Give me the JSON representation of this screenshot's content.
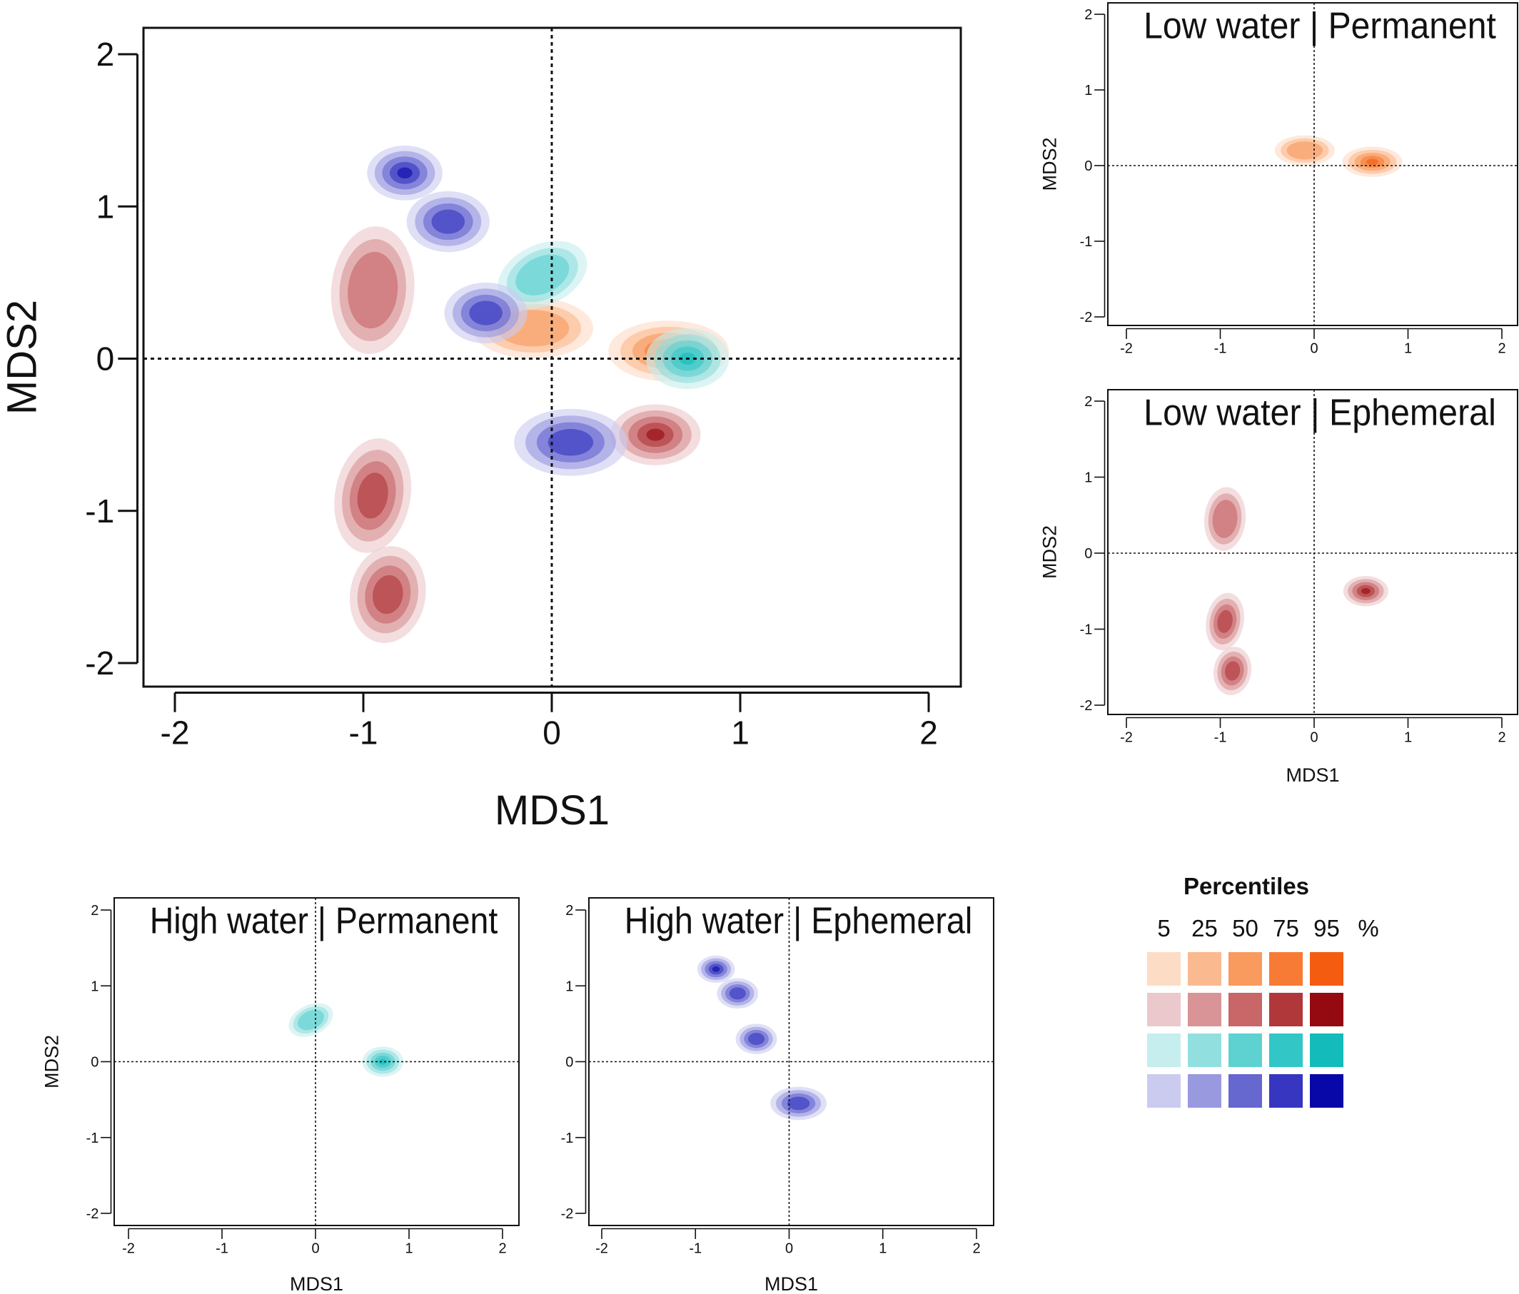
{
  "contour_levels": [
    5,
    25,
    50,
    75,
    95
  ],
  "legend": {
    "title": "Percentiles",
    "headers": [
      "5",
      "25",
      "50",
      "75",
      "95"
    ],
    "unit": "%",
    "rows": [
      [
        "#fddcc6",
        "#fbb990",
        "#f99a5e",
        "#f77a35",
        "#f45c10"
      ],
      [
        "#ebc8cb",
        "#d89496",
        "#c86668",
        "#b0383b",
        "#950910"
      ],
      [
        "#c6eeee",
        "#92dfdf",
        "#5ed1d1",
        "#33c6c6",
        "#13bbbb"
      ],
      [
        "#cbcbf0",
        "#9999e0",
        "#6767d0",
        "#3636c0",
        "#0808a8"
      ]
    ]
  },
  "chart_data": [
    {
      "type": "contour",
      "title": "",
      "xlabel": "MDS1",
      "ylabel": "MDS2",
      "xlim": [
        -2,
        2
      ],
      "ylim": [
        -2,
        2
      ],
      "xticks": [
        "-2",
        "-1",
        "0",
        "1",
        "2"
      ],
      "yticks": [
        "-2",
        "-1",
        "0",
        "1",
        "2"
      ],
      "reference_lines": {
        "x": 0,
        "y": 0
      },
      "series": [
        {
          "palette": "orange",
          "blobs": [
            {
              "x": -0.1,
              "y": 0.2,
              "sx": 0.32,
              "sy": 0.2,
              "rot": 0,
              "peak": 0.55
            },
            {
              "x": 0.62,
              "y": 0.05,
              "sx": 0.32,
              "sy": 0.2,
              "rot": 0,
              "peak": 1
            }
          ]
        },
        {
          "palette": "red",
          "blobs": [
            {
              "x": -0.95,
              "y": 0.45,
              "sx": 0.22,
              "sy": 0.42,
              "rot": 5,
              "peak": 0.6
            },
            {
              "x": -0.95,
              "y": -0.9,
              "sx": 0.2,
              "sy": 0.38,
              "rot": 10,
              "peak": 0.8
            },
            {
              "x": -0.87,
              "y": -1.55,
              "sx": 0.2,
              "sy": 0.32,
              "rot": 10,
              "peak": 0.8
            },
            {
              "x": 0.55,
              "y": -0.5,
              "sx": 0.24,
              "sy": 0.2,
              "rot": 0,
              "peak": 1
            }
          ]
        },
        {
          "palette": "teal",
          "blobs": [
            {
              "x": -0.05,
              "y": 0.55,
              "sx": 0.25,
              "sy": 0.2,
              "rot": -25,
              "peak": 0.6
            },
            {
              "x": 0.72,
              "y": 0.0,
              "sx": 0.22,
              "sy": 0.2,
              "rot": 0,
              "peak": 1
            }
          ]
        },
        {
          "palette": "blue",
          "blobs": [
            {
              "x": -0.78,
              "y": 1.22,
              "sx": 0.2,
              "sy": 0.18,
              "rot": 0,
              "peak": 1
            },
            {
              "x": -0.55,
              "y": 0.9,
              "sx": 0.22,
              "sy": 0.2,
              "rot": 0,
              "peak": 0.75
            },
            {
              "x": -0.35,
              "y": 0.3,
              "sx": 0.22,
              "sy": 0.2,
              "rot": 0,
              "peak": 0.8
            },
            {
              "x": 0.1,
              "y": -0.55,
              "sx": 0.3,
              "sy": 0.22,
              "rot": 0,
              "peak": 0.85
            }
          ]
        }
      ]
    },
    {
      "type": "contour",
      "title": "Low water | Permanent",
      "xlabel": "",
      "ylabel": "MDS2",
      "xlim": [
        -2,
        2
      ],
      "ylim": [
        -2,
        2
      ],
      "xticks": [
        "-2",
        "-1",
        "0",
        "1",
        "2"
      ],
      "yticks": [
        "-2",
        "-1",
        "0",
        "1",
        "2"
      ],
      "reference_lines": {
        "x": 0,
        "y": 0
      },
      "series": [
        {
          "palette": "orange",
          "blobs": [
            {
              "x": -0.1,
              "y": 0.2,
              "sx": 0.32,
              "sy": 0.2,
              "rot": 0,
              "peak": 0.55
            },
            {
              "x": 0.62,
              "y": 0.05,
              "sx": 0.32,
              "sy": 0.2,
              "rot": 0,
              "peak": 1
            }
          ]
        }
      ]
    },
    {
      "type": "contour",
      "title": "Low water | Ephemeral",
      "xlabel": "MDS1",
      "ylabel": "MDS2",
      "xlim": [
        -2,
        2
      ],
      "ylim": [
        -2,
        2
      ],
      "xticks": [
        "-2",
        "-1",
        "0",
        "1",
        "2"
      ],
      "yticks": [
        "-2",
        "-1",
        "0",
        "1",
        "2"
      ],
      "reference_lines": {
        "x": 0,
        "y": 0
      },
      "series": [
        {
          "palette": "red",
          "blobs": [
            {
              "x": -0.95,
              "y": 0.45,
              "sx": 0.22,
              "sy": 0.42,
              "rot": 5,
              "peak": 0.6
            },
            {
              "x": -0.95,
              "y": -0.9,
              "sx": 0.2,
              "sy": 0.38,
              "rot": 10,
              "peak": 0.8
            },
            {
              "x": -0.87,
              "y": -1.55,
              "sx": 0.2,
              "sy": 0.32,
              "rot": 10,
              "peak": 0.8
            },
            {
              "x": 0.55,
              "y": -0.5,
              "sx": 0.24,
              "sy": 0.2,
              "rot": 0,
              "peak": 1
            }
          ]
        }
      ]
    },
    {
      "type": "contour",
      "title": "High water | Permanent",
      "xlabel": "MDS1",
      "ylabel": "MDS2",
      "xlim": [
        -2,
        2
      ],
      "ylim": [
        -2,
        2
      ],
      "xticks": [
        "-2",
        "-1",
        "0",
        "1",
        "2"
      ],
      "yticks": [
        "-2",
        "-1",
        "0",
        "1",
        "2"
      ],
      "reference_lines": {
        "x": 0,
        "y": 0
      },
      "series": [
        {
          "palette": "teal",
          "blobs": [
            {
              "x": -0.05,
              "y": 0.55,
              "sx": 0.25,
              "sy": 0.2,
              "rot": -25,
              "peak": 0.6
            },
            {
              "x": 0.72,
              "y": 0.0,
              "sx": 0.22,
              "sy": 0.2,
              "rot": 0,
              "peak": 1
            }
          ]
        }
      ]
    },
    {
      "type": "contour",
      "title": "High water | Ephemeral",
      "xlabel": "MDS1",
      "ylabel": "",
      "xlim": [
        -2,
        2
      ],
      "ylim": [
        -2,
        2
      ],
      "xticks": [
        "-2",
        "-1",
        "0",
        "1",
        "2"
      ],
      "yticks": [
        "-2",
        "-1",
        "0",
        "1",
        "2"
      ],
      "reference_lines": {
        "x": 0,
        "y": 0
      },
      "series": [
        {
          "palette": "blue",
          "blobs": [
            {
              "x": -0.78,
              "y": 1.22,
              "sx": 0.2,
              "sy": 0.18,
              "rot": 0,
              "peak": 1
            },
            {
              "x": -0.55,
              "y": 0.9,
              "sx": 0.22,
              "sy": 0.2,
              "rot": 0,
              "peak": 0.75
            },
            {
              "x": -0.35,
              "y": 0.3,
              "sx": 0.22,
              "sy": 0.2,
              "rot": 0,
              "peak": 0.8
            },
            {
              "x": 0.1,
              "y": -0.55,
              "sx": 0.3,
              "sy": 0.22,
              "rot": 0,
              "peak": 0.85
            }
          ]
        }
      ]
    }
  ]
}
